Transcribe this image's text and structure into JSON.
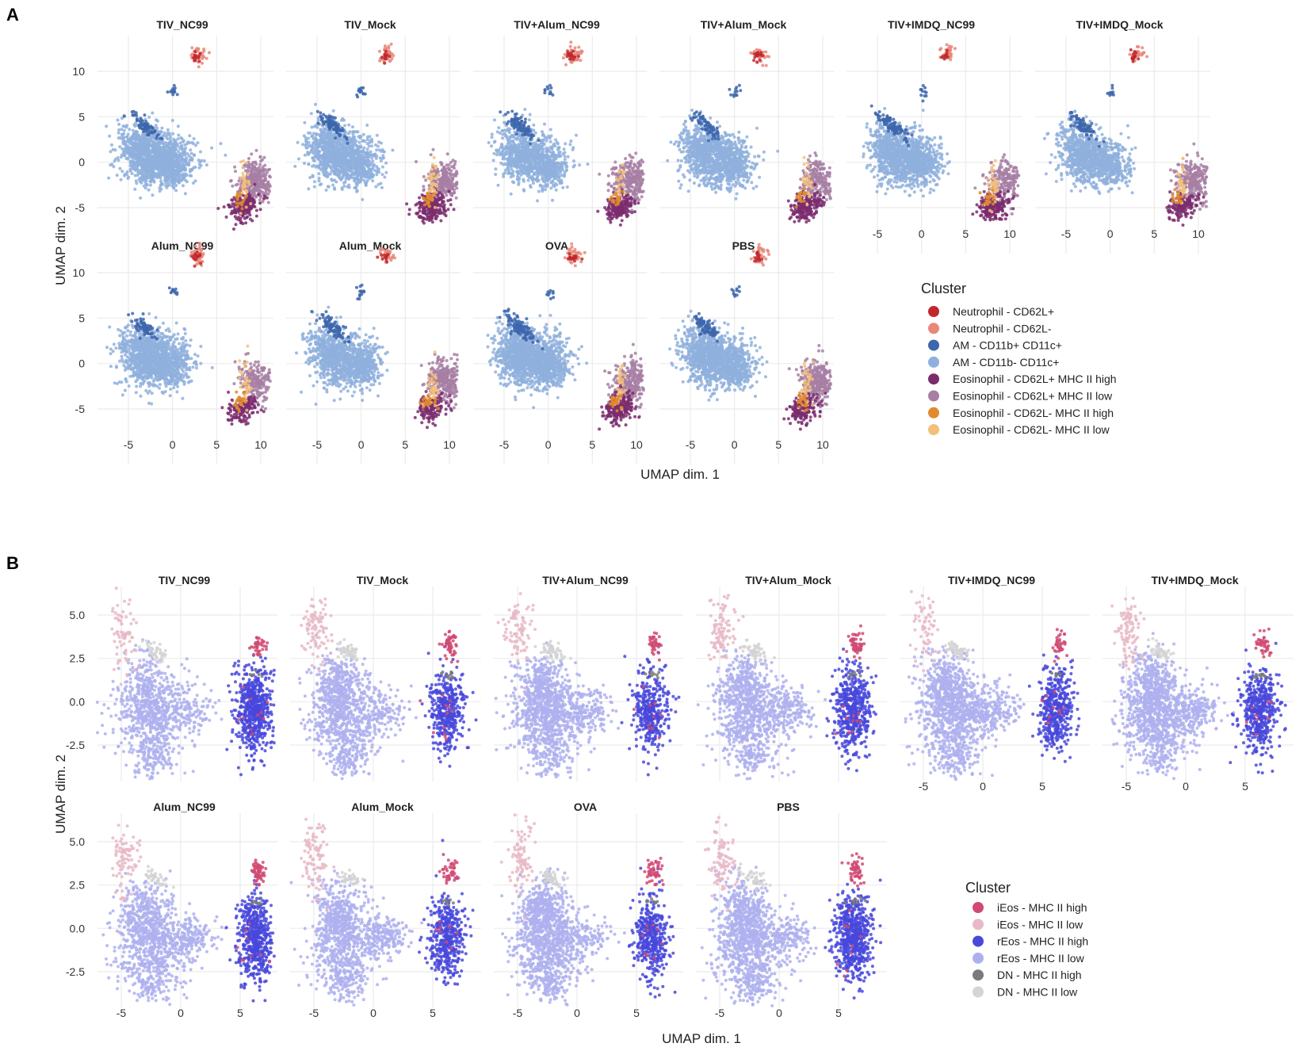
{
  "chart_data": [
    {
      "type": "scatter",
      "panel_label": "A",
      "xlabel": "UMAP dim. 1",
      "ylabel": "UMAP dim. 2",
      "xticks": [
        "-5",
        "0",
        "5",
        "10"
      ],
      "yticks": [
        "-5",
        "0",
        "5",
        "10"
      ],
      "xlim": [
        -8.5,
        12.5
      ],
      "ylim": [
        -6.5,
        13.5
      ],
      "facets": [
        "TIV_NC99",
        "TIV_Mock",
        "TIV+Alum_NC99",
        "TIV+Alum_Mock",
        "TIV+IMDQ_NC99",
        "TIV+IMDQ_Mock",
        "Alum_NC99",
        "Alum_Mock",
        "OVA",
        "PBS"
      ],
      "legend_title": "Cluster",
      "legend": [
        {
          "label": "Neutrophil - CD62L+",
          "color": "#c1272d"
        },
        {
          "label": "Neutrophil - CD62L-",
          "color": "#e8887a"
        },
        {
          "label": "AM - CD11b+ CD11c+",
          "color": "#3d66ad"
        },
        {
          "label": "AM - CD11b- CD11c+",
          "color": "#8fb0dd"
        },
        {
          "label": "Eosinophil - CD62L+ MHC II high",
          "color": "#7b2c6e"
        },
        {
          "label": "Eosinophil - CD62L+ MHC II low",
          "color": "#a77fa4"
        },
        {
          "label": "Eosinophil - CD62L- MHC II high",
          "color": "#e08a2e"
        },
        {
          "label": "Eosinophil - CD62L- MHC II low",
          "color": "#f2c07a"
        }
      ]
    },
    {
      "type": "scatter",
      "panel_label": "B",
      "xlabel": "UMAP dim. 1",
      "ylabel": "UMAP dim. 2",
      "xticks": [
        "-5",
        "0",
        "5"
      ],
      "yticks": [
        "-2.5",
        "0.0",
        "2.5",
        "5.0"
      ],
      "xlim": [
        -6.5,
        8.0
      ],
      "ylim": [
        -4.5,
        6.2
      ],
      "facets": [
        "TIV_NC99",
        "TIV_Mock",
        "TIV+Alum_NC99",
        "TIV+Alum_Mock",
        "TIV+IMDQ_NC99",
        "TIV+IMDQ_Mock",
        "Alum_NC99",
        "Alum_Mock",
        "OVA",
        "PBS"
      ],
      "legend_title": "Cluster",
      "legend": [
        {
          "label": "iEos - MHC II high",
          "color": "#d14a73"
        },
        {
          "label": "iEos - MHC II low",
          "color": "#e8b9c6"
        },
        {
          "label": "rEos - MHC II high",
          "color": "#4848dc"
        },
        {
          "label": "rEos - MHC II low",
          "color": "#aeb0ee"
        },
        {
          "label": "DN - MHC II high",
          "color": "#7a7a7a"
        },
        {
          "label": "DN - MHC II low",
          "color": "#d4d4d4"
        }
      ]
    }
  ]
}
